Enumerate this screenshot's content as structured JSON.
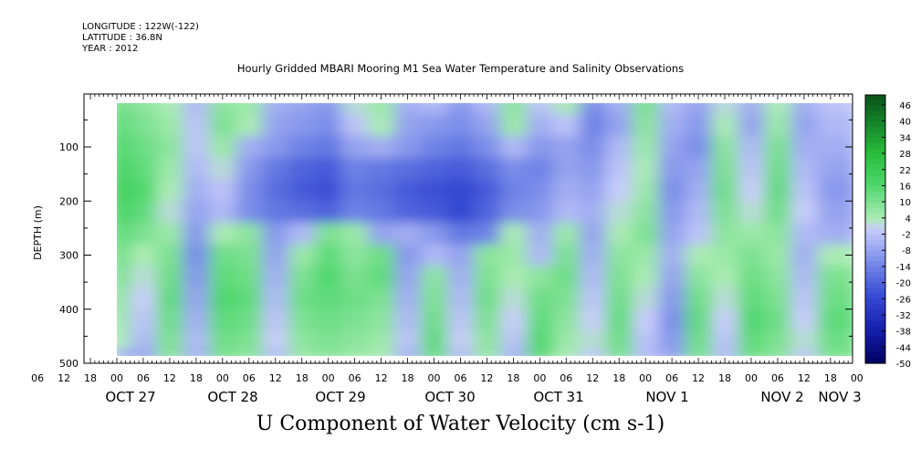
{
  "header": {
    "longitude": "LONGITUDE : 122W(-122)",
    "latitude": "LATITUDE : 36.8N",
    "year": "YEAR : 2012"
  },
  "chart_data": {
    "type": "heatmap",
    "title": "Hourly Gridded MBARI Mooring M1 Sea Water Temperature and Salinity Observations",
    "xlabel": "U Component of Water Velocity (cm s-1)",
    "ylabel": "DEPTH (m)",
    "ylim": [
      500,
      0
    ],
    "yticks": [
      100,
      200,
      300,
      400,
      500
    ],
    "hour_ticks": [
      "06",
      "12",
      "18",
      "00",
      "06",
      "12",
      "18",
      "00",
      "06",
      "12",
      "18",
      "00",
      "06",
      "12",
      "18",
      "00",
      "06",
      "12",
      "18",
      "00",
      "06",
      "12",
      "18",
      "00",
      "06",
      "12",
      "18",
      "00",
      "06",
      "12",
      "18",
      "00"
    ],
    "day_labels": [
      "OCT 27",
      "OCT 28",
      "OCT 29",
      "OCT 30",
      "OCT 31",
      "NOV  1",
      "NOV  2",
      "NOV  3"
    ],
    "colorbar": {
      "labels": [
        "46",
        "40",
        "34",
        "28",
        "22",
        "16",
        "10",
        "4",
        "-2",
        "-8",
        "-14",
        "-20",
        "-26",
        "-32",
        "-38",
        "-44",
        "-50"
      ],
      "range": [
        -50,
        50
      ]
    },
    "depth_rows": [
      20,
      60,
      100,
      140,
      180,
      220,
      260,
      300,
      340,
      380,
      420,
      460,
      490
    ],
    "time_cols_hours": [
      0,
      6,
      12,
      18,
      24,
      30,
      36,
      42,
      48,
      54,
      60,
      66,
      72,
      78,
      84,
      90,
      96,
      102,
      108,
      114,
      120,
      126,
      132,
      138,
      144,
      150,
      156,
      162
    ],
    "values": [
      [
        12,
        8,
        4,
        -4,
        8,
        6,
        -6,
        -8,
        -10,
        2,
        6,
        -6,
        -4,
        -10,
        -4,
        8,
        -2,
        4,
        -12,
        -6,
        10,
        -4,
        -8,
        2,
        -6,
        4,
        -6,
        -2
      ],
      [
        14,
        10,
        6,
        -2,
        10,
        4,
        -8,
        -10,
        -12,
        -2,
        4,
        -8,
        -10,
        -12,
        -8,
        6,
        -6,
        -2,
        -14,
        -8,
        8,
        -6,
        -10,
        4,
        -8,
        6,
        -8,
        -4
      ],
      [
        16,
        12,
        8,
        -2,
        6,
        -6,
        -10,
        -14,
        -16,
        -8,
        -6,
        -10,
        -14,
        -16,
        -12,
        -4,
        -10,
        -8,
        -12,
        -4,
        6,
        -8,
        -12,
        8,
        -4,
        10,
        -6,
        -6
      ],
      [
        18,
        14,
        6,
        -4,
        2,
        -10,
        -16,
        -20,
        -22,
        -14,
        -16,
        -18,
        -20,
        -22,
        -18,
        -12,
        -14,
        -8,
        -10,
        -2,
        4,
        -10,
        -8,
        10,
        -2,
        12,
        -4,
        -8
      ],
      [
        20,
        16,
        4,
        -6,
        -2,
        -12,
        -18,
        -22,
        -24,
        -16,
        -18,
        -22,
        -24,
        -26,
        -22,
        -14,
        -12,
        -6,
        -8,
        0,
        6,
        -12,
        -6,
        12,
        0,
        14,
        -2,
        -10
      ],
      [
        18,
        14,
        2,
        -8,
        -4,
        -12,
        -16,
        -18,
        -20,
        -14,
        -16,
        -20,
        -22,
        -26,
        -20,
        -12,
        -10,
        -4,
        -6,
        2,
        8,
        -10,
        -4,
        10,
        2,
        12,
        0,
        -8
      ],
      [
        14,
        10,
        6,
        -10,
        4,
        8,
        -10,
        -4,
        10,
        6,
        -8,
        -6,
        -10,
        -16,
        -14,
        4,
        -6,
        6,
        -8,
        4,
        10,
        -8,
        -2,
        8,
        6,
        8,
        -4,
        -6
      ],
      [
        12,
        4,
        10,
        -12,
        12,
        10,
        -8,
        6,
        14,
        8,
        12,
        -10,
        -4,
        -8,
        8,
        6,
        -4,
        10,
        -6,
        8,
        6,
        -6,
        4,
        6,
        10,
        6,
        -6,
        4
      ],
      [
        10,
        2,
        12,
        -10,
        14,
        12,
        -6,
        10,
        16,
        10,
        14,
        -8,
        8,
        -6,
        10,
        4,
        8,
        12,
        -4,
        10,
        4,
        -8,
        8,
        4,
        12,
        8,
        -4,
        10
      ],
      [
        8,
        0,
        14,
        -8,
        16,
        14,
        -4,
        12,
        14,
        12,
        10,
        -6,
        10,
        -4,
        12,
        2,
        12,
        10,
        -2,
        12,
        2,
        -10,
        12,
        2,
        14,
        10,
        -2,
        12
      ],
      [
        6,
        -2,
        12,
        -6,
        14,
        12,
        -2,
        10,
        12,
        10,
        8,
        -4,
        12,
        -2,
        10,
        0,
        14,
        8,
        0,
        14,
        0,
        -12,
        14,
        0,
        16,
        12,
        0,
        14
      ],
      [
        4,
        -4,
        10,
        -4,
        12,
        10,
        0,
        8,
        10,
        8,
        6,
        -2,
        14,
        0,
        8,
        -2,
        16,
        6,
        2,
        12,
        -2,
        -10,
        12,
        -2,
        14,
        10,
        2,
        12
      ],
      [
        -6,
        -8,
        8,
        -6,
        10,
        8,
        -4,
        6,
        8,
        6,
        4,
        -6,
        12,
        -4,
        6,
        -6,
        14,
        4,
        -2,
        10,
        -4,
        -8,
        10,
        -4,
        12,
        8,
        -2,
        10
      ]
    ]
  }
}
